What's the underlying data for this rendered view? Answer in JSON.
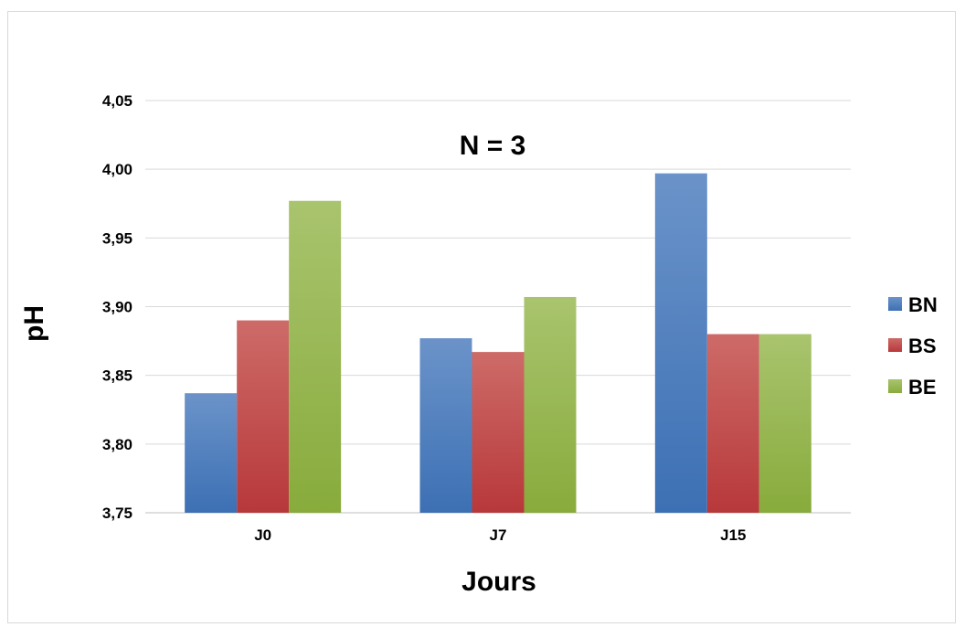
{
  "chart_data": {
    "type": "bar",
    "title": "",
    "annotation": "N = 3",
    "xlabel": "Jours",
    "ylabel": "pH",
    "categories": [
      "J0",
      "J7",
      "J15"
    ],
    "series": [
      {
        "name": "BN",
        "values": [
          3.837,
          3.877,
          3.997
        ]
      },
      {
        "name": "BS",
        "values": [
          3.89,
          3.867,
          3.88
        ]
      },
      {
        "name": "BE",
        "values": [
          3.977,
          3.907,
          3.88
        ]
      }
    ],
    "ylim": [
      3.75,
      4.05
    ],
    "yticks": [
      "3,75",
      "3,80",
      "3,85",
      "3,90",
      "3,95",
      "4,00",
      "4,05"
    ],
    "ytick_values": [
      3.75,
      3.8,
      3.85,
      3.9,
      3.95,
      4.0,
      4.05
    ],
    "grid": true,
    "legend_position": "right"
  },
  "colors": {
    "BN": "#4f81bd",
    "BS": "#c0504d",
    "BE": "#9bbb59",
    "grid": "#d9d9d9"
  }
}
